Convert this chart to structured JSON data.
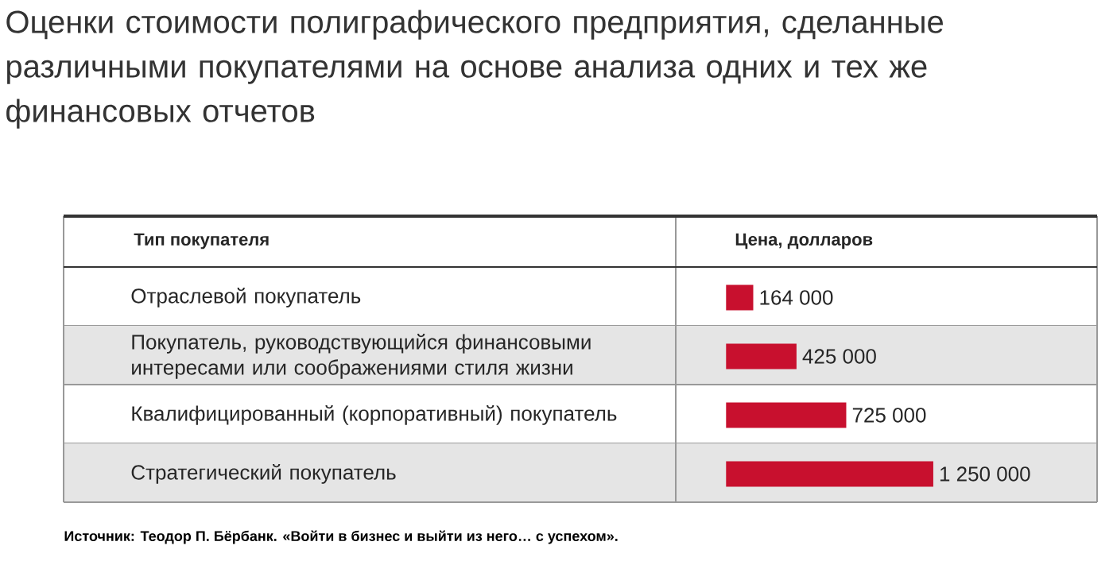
{
  "chart_data": {
    "type": "bar",
    "orientation": "horizontal",
    "title": "Оценки стоимости полиграфического предприятия, сделанные различными покупателями на основе анализа одних и тех же финансовых отчетов",
    "ylabel": "Тип покупателя",
    "xlabel": "Цена, долларов",
    "categories": [
      "Отраслевой покупатель",
      "Покупатель, руководствующийся финансовыми интересами или соображениями стиля жизни",
      "Квалифицированный (корпоративный) покупатель",
      "Стратегический покупатель"
    ],
    "values": [
      164000,
      425000,
      725000,
      1250000
    ],
    "value_labels": [
      "164 000",
      "425 000",
      "725 000",
      "1 250 000"
    ],
    "color": "#c8102e",
    "tick_labels": "y",
    "annotations": [
      "Источник: Теодор П. Бёрбанк. «Войти в бизнес и выйти из него… с успехом»."
    ]
  }
}
